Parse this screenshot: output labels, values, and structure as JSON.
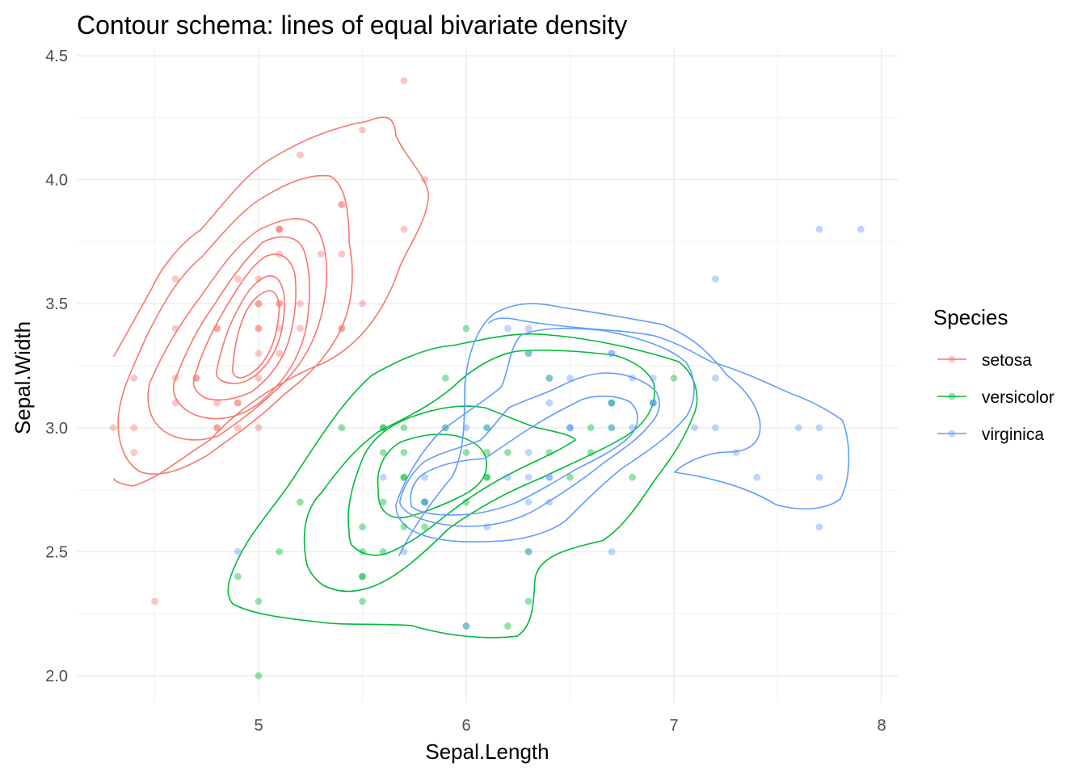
{
  "chart_data": {
    "type": "scatter",
    "title": "Contour schema: lines of equal bivariate density",
    "xlabel": "Sepal.Length",
    "ylabel": "Sepal.Width",
    "xlim": [
      4.2,
      8.1
    ],
    "ylim": [
      1.88,
      4.58
    ],
    "x_ticks": [
      "5",
      "6",
      "7",
      "8"
    ],
    "y_ticks": [
      "2.0",
      "2.5",
      "3.0",
      "3.5",
      "4.0",
      "4.5"
    ],
    "grid": true,
    "legend": {
      "title": "Species",
      "position": "right"
    },
    "series": [
      {
        "name": "setosa",
        "color": "#F8766D",
        "points": [
          [
            5.1,
            3.5
          ],
          [
            4.9,
            3.0
          ],
          [
            4.7,
            3.2
          ],
          [
            4.6,
            3.1
          ],
          [
            5.0,
            3.6
          ],
          [
            5.4,
            3.9
          ],
          [
            4.6,
            3.4
          ],
          [
            5.0,
            3.4
          ],
          [
            4.4,
            2.9
          ],
          [
            4.9,
            3.1
          ],
          [
            5.4,
            3.7
          ],
          [
            4.8,
            3.4
          ],
          [
            4.8,
            3.0
          ],
          [
            4.3,
            3.0
          ],
          [
            5.8,
            4.0
          ],
          [
            5.7,
            4.4
          ],
          [
            5.4,
            3.9
          ],
          [
            5.1,
            3.5
          ],
          [
            5.7,
            3.8
          ],
          [
            5.1,
            3.8
          ],
          [
            5.4,
            3.4
          ],
          [
            5.1,
            3.7
          ],
          [
            4.6,
            3.6
          ],
          [
            5.1,
            3.3
          ],
          [
            4.8,
            3.4
          ],
          [
            5.0,
            3.0
          ],
          [
            5.0,
            3.4
          ],
          [
            5.2,
            3.5
          ],
          [
            5.2,
            3.4
          ],
          [
            4.7,
            3.2
          ],
          [
            4.8,
            3.1
          ],
          [
            5.4,
            3.4
          ],
          [
            5.2,
            4.1
          ],
          [
            5.5,
            4.2
          ],
          [
            4.9,
            3.1
          ],
          [
            5.0,
            3.2
          ],
          [
            5.5,
            3.5
          ],
          [
            4.9,
            3.6
          ],
          [
            4.4,
            3.0
          ],
          [
            5.1,
            3.4
          ],
          [
            5.0,
            3.5
          ],
          [
            4.5,
            2.3
          ],
          [
            4.4,
            3.2
          ],
          [
            5.0,
            3.5
          ],
          [
            5.1,
            3.8
          ],
          [
            4.8,
            3.0
          ],
          [
            5.1,
            3.8
          ],
          [
            4.6,
            3.2
          ],
          [
            5.3,
            3.7
          ],
          [
            5.0,
            3.3
          ]
        ]
      },
      {
        "name": "versicolor",
        "color": "#00BA38",
        "points": [
          [
            7.0,
            3.2
          ],
          [
            6.4,
            3.2
          ],
          [
            6.9,
            3.1
          ],
          [
            5.5,
            2.3
          ],
          [
            6.5,
            2.8
          ],
          [
            5.7,
            2.8
          ],
          [
            6.3,
            3.3
          ],
          [
            4.9,
            2.4
          ],
          [
            6.6,
            2.9
          ],
          [
            5.2,
            2.7
          ],
          [
            5.0,
            2.0
          ],
          [
            5.9,
            3.0
          ],
          [
            6.0,
            2.2
          ],
          [
            6.1,
            2.9
          ],
          [
            5.6,
            2.9
          ],
          [
            6.7,
            3.1
          ],
          [
            5.6,
            3.0
          ],
          [
            5.8,
            2.7
          ],
          [
            6.2,
            2.2
          ],
          [
            5.6,
            2.5
          ],
          [
            5.9,
            3.2
          ],
          [
            6.1,
            2.8
          ],
          [
            6.3,
            2.5
          ],
          [
            6.1,
            2.8
          ],
          [
            6.4,
            2.9
          ],
          [
            6.6,
            3.0
          ],
          [
            6.8,
            2.8
          ],
          [
            6.7,
            3.0
          ],
          [
            6.0,
            2.9
          ],
          [
            5.7,
            2.6
          ],
          [
            5.5,
            2.4
          ],
          [
            5.5,
            2.4
          ],
          [
            5.8,
            2.7
          ],
          [
            6.0,
            2.7
          ],
          [
            5.4,
            3.0
          ],
          [
            6.0,
            3.4
          ],
          [
            6.7,
            3.1
          ],
          [
            6.3,
            2.3
          ],
          [
            5.6,
            3.0
          ],
          [
            5.5,
            2.5
          ],
          [
            5.5,
            2.6
          ],
          [
            6.1,
            3.0
          ],
          [
            5.8,
            2.6
          ],
          [
            5.0,
            2.3
          ],
          [
            5.6,
            2.7
          ],
          [
            5.7,
            3.0
          ],
          [
            5.7,
            2.9
          ],
          [
            6.2,
            2.9
          ],
          [
            5.1,
            2.5
          ],
          [
            5.7,
            2.8
          ]
        ]
      },
      {
        "name": "virginica",
        "color": "#619CFF",
        "points": [
          [
            6.3,
            3.3
          ],
          [
            5.8,
            2.7
          ],
          [
            7.1,
            3.0
          ],
          [
            6.3,
            2.9
          ],
          [
            6.5,
            3.0
          ],
          [
            7.6,
            3.0
          ],
          [
            4.9,
            2.5
          ],
          [
            7.3,
            2.9
          ],
          [
            6.7,
            2.5
          ],
          [
            7.2,
            3.6
          ],
          [
            6.5,
            3.2
          ],
          [
            6.4,
            2.7
          ],
          [
            6.8,
            3.0
          ],
          [
            5.7,
            2.5
          ],
          [
            5.8,
            2.8
          ],
          [
            6.4,
            3.2
          ],
          [
            6.5,
            3.0
          ],
          [
            7.7,
            3.8
          ],
          [
            7.7,
            2.6
          ],
          [
            6.0,
            2.2
          ],
          [
            6.9,
            3.2
          ],
          [
            5.6,
            2.8
          ],
          [
            7.7,
            2.8
          ],
          [
            6.3,
            2.7
          ],
          [
            6.7,
            3.3
          ],
          [
            7.2,
            3.2
          ],
          [
            6.2,
            2.8
          ],
          [
            6.1,
            3.0
          ],
          [
            6.4,
            2.8
          ],
          [
            7.2,
            3.0
          ],
          [
            7.4,
            2.8
          ],
          [
            7.9,
            3.8
          ],
          [
            6.4,
            2.8
          ],
          [
            6.3,
            2.8
          ],
          [
            6.1,
            2.6
          ],
          [
            7.7,
            3.0
          ],
          [
            6.3,
            3.4
          ],
          [
            6.4,
            3.1
          ],
          [
            6.0,
            3.0
          ],
          [
            6.9,
            3.1
          ],
          [
            6.7,
            3.1
          ],
          [
            6.9,
            3.1
          ],
          [
            5.8,
            2.7
          ],
          [
            6.8,
            3.2
          ],
          [
            6.7,
            3.3
          ],
          [
            6.7,
            3.0
          ],
          [
            6.3,
            2.5
          ],
          [
            6.5,
            3.0
          ],
          [
            6.2,
            3.4
          ],
          [
            5.9,
            3.0
          ]
        ]
      }
    ]
  }
}
